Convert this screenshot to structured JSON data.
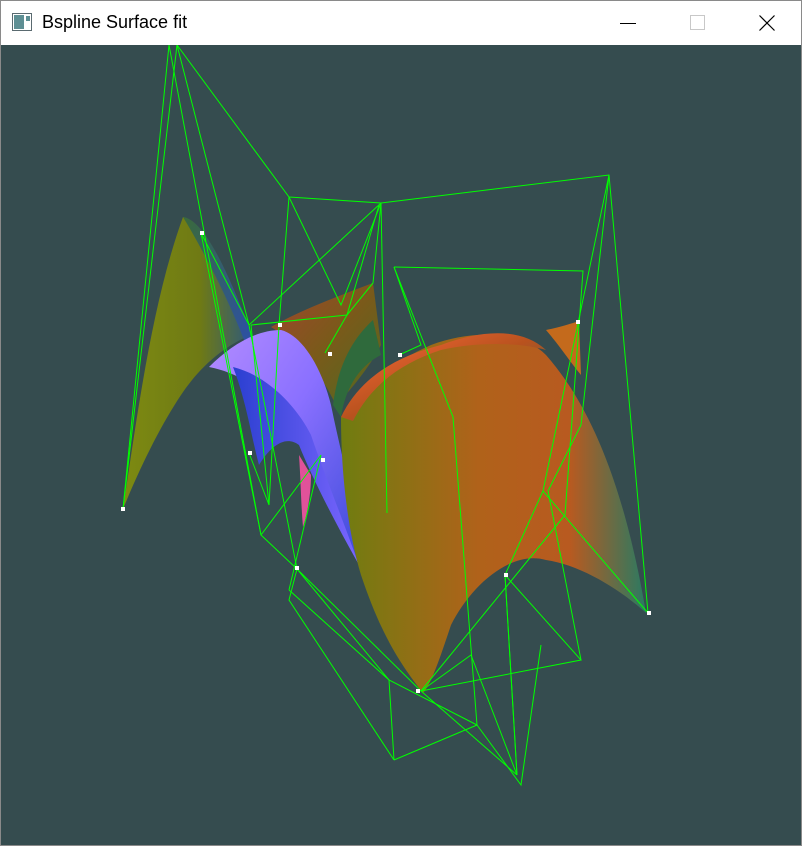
{
  "window": {
    "title": "Bspline Surface fit",
    "icons": {
      "app": "app-window-icon",
      "minimize": "minimize-icon",
      "maximize": "maximize-icon",
      "close": "close-icon"
    }
  },
  "scene": {
    "background_color": "#354c4f",
    "control_net_color": "#00ff00",
    "control_point_color": "#ffffff",
    "surface_colors": {
      "left_patch": "#7a8a10",
      "center_patch": "#8a7bff",
      "right_patch": "#c86a1a"
    }
  }
}
